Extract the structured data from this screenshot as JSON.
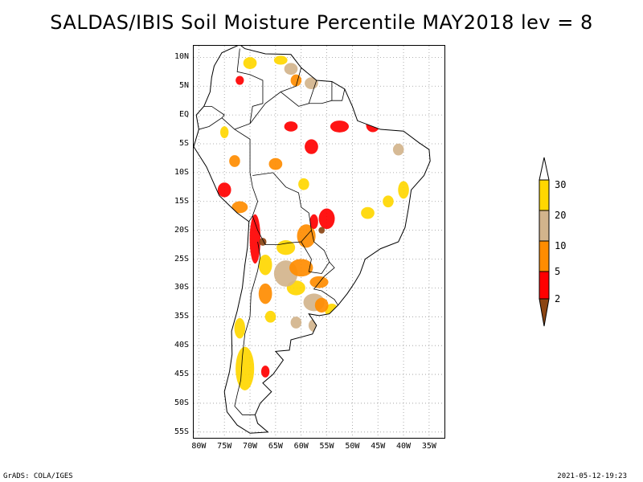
{
  "title": "SALDAS/IBIS Soil Moisture Percentile MAY2018 lev = 8",
  "axes": {
    "lat_ticks": [
      "10N",
      "5N",
      "EQ",
      "5S",
      "10S",
      "15S",
      "20S",
      "25S",
      "30S",
      "35S",
      "40S",
      "45S",
      "50S",
      "55S"
    ],
    "lat_values": [
      10,
      5,
      0,
      -5,
      -10,
      -15,
      -20,
      -25,
      -30,
      -35,
      -40,
      -45,
      -50,
      -55
    ],
    "lon_ticks": [
      "80W",
      "75W",
      "70W",
      "65W",
      "60W",
      "55W",
      "50W",
      "45W",
      "40W",
      "35W"
    ],
    "lon_values": [
      -80,
      -75,
      -70,
      -65,
      -60,
      -55,
      -50,
      -45,
      -40,
      -35
    ],
    "lat_range": [
      -56,
      12
    ],
    "lon_range": [
      -81,
      -32
    ],
    "grid": true
  },
  "colorbar": {
    "labels": [
      "30",
      "20",
      "10",
      "5",
      "2"
    ],
    "colors": {
      "above_30": "#ffffff",
      "20_30": "#ffd700",
      "10_20": "#d2b48c",
      "5_10": "#ff8c00",
      "2_5": "#ff0000",
      "below_2": "#8b4513"
    }
  },
  "footer": {
    "left": "GrADS: COLA/IGES",
    "right": "2021-05-12-19:23"
  },
  "map": {
    "outline": [
      [
        -77.0,
        8.5
      ],
      [
        -75.5,
        10.8
      ],
      [
        -72.0,
        12.2
      ],
      [
        -71.0,
        11.5
      ],
      [
        -67.0,
        10.6
      ],
      [
        -62.0,
        10.5
      ],
      [
        -60.0,
        8.2
      ],
      [
        -57.0,
        6.0
      ],
      [
        -54.0,
        5.8
      ],
      [
        -51.5,
        4.5
      ],
      [
        -50.0,
        1.5
      ],
      [
        -49.0,
        -1.0
      ],
      [
        -44.5,
        -2.5
      ],
      [
        -40.0,
        -2.8
      ],
      [
        -37.0,
        -4.8
      ],
      [
        -35.0,
        -6.0
      ],
      [
        -34.8,
        -8.0
      ],
      [
        -36.0,
        -10.5
      ],
      [
        -38.5,
        -13.0
      ],
      [
        -39.0,
        -16.0
      ],
      [
        -39.7,
        -19.5
      ],
      [
        -41.0,
        -22.0
      ],
      [
        -44.5,
        -23.2
      ],
      [
        -47.5,
        -25.0
      ],
      [
        -48.5,
        -27.5
      ],
      [
        -49.5,
        -29.0
      ],
      [
        -51.0,
        -31.0
      ],
      [
        -52.8,
        -33.0
      ],
      [
        -54.5,
        -34.5
      ],
      [
        -56.5,
        -34.8
      ],
      [
        -58.5,
        -34.5
      ],
      [
        -57.0,
        -36.5
      ],
      [
        -57.8,
        -38.0
      ],
      [
        -62.0,
        -39.0
      ],
      [
        -62.3,
        -40.8
      ],
      [
        -65.0,
        -41.0
      ],
      [
        -63.5,
        -42.5
      ],
      [
        -65.5,
        -45.0
      ],
      [
        -67.5,
        -46.5
      ],
      [
        -65.8,
        -48.0
      ],
      [
        -68.0,
        -50.0
      ],
      [
        -69.0,
        -52.0
      ],
      [
        -68.5,
        -53.5
      ],
      [
        -66.5,
        -55.0
      ],
      [
        -70.0,
        -55.2
      ],
      [
        -72.5,
        -53.8
      ],
      [
        -74.5,
        -51.5
      ],
      [
        -75.0,
        -48.0
      ],
      [
        -74.0,
        -44.5
      ],
      [
        -73.5,
        -41.5
      ],
      [
        -73.6,
        -37.5
      ],
      [
        -72.5,
        -34.0
      ],
      [
        -71.5,
        -30.0
      ],
      [
        -71.0,
        -26.0
      ],
      [
        -70.5,
        -23.0
      ],
      [
        -70.2,
        -18.5
      ],
      [
        -72.5,
        -17.0
      ],
      [
        -76.0,
        -14.0
      ],
      [
        -78.5,
        -9.0
      ],
      [
        -81.0,
        -5.5
      ],
      [
        -80.0,
        -2.5
      ],
      [
        -80.5,
        0.0
      ],
      [
        -79.0,
        1.5
      ],
      [
        -77.8,
        4.0
      ],
      [
        -77.5,
        6.5
      ],
      [
        -77.0,
        8.5
      ]
    ],
    "borders": [
      [
        [
          -80.0,
          -2.5
        ],
        [
          -78.0,
          -2.0
        ],
        [
          -75.5,
          -0.5
        ],
        [
          -75.0,
          0.0
        ],
        [
          -77.5,
          1.5
        ],
        [
          -79.0,
          1.5
        ]
      ],
      [
        [
          -75.5,
          -0.5
        ],
        [
          -73.0,
          -2.5
        ],
        [
          -70.0,
          -4.2
        ],
        [
          -70.0,
          -10.0
        ],
        [
          -69.5,
          -12.5
        ],
        [
          -68.5,
          -15.0
        ],
        [
          -69.5,
          -17.5
        ],
        [
          -70.2,
          -18.5
        ]
      ],
      [
        [
          -73.0,
          -2.5
        ],
        [
          -70.0,
          -1.5
        ],
        [
          -69.5,
          1.5
        ],
        [
          -67.5,
          2.0
        ],
        [
          -67.5,
          6.0
        ],
        [
          -70.0,
          7.0
        ],
        [
          -72.5,
          7.5
        ],
        [
          -72.0,
          11.5
        ]
      ],
      [
        [
          -70.0,
          -1.5
        ],
        [
          -67.0,
          2.0
        ],
        [
          -64.0,
          4.0
        ],
        [
          -61.0,
          5.0
        ],
        [
          -60.0,
          8.2
        ]
      ],
      [
        [
          -64.0,
          4.0
        ],
        [
          -60.5,
          1.5
        ],
        [
          -58.5,
          2.0
        ],
        [
          -57.0,
          6.0
        ]
      ],
      [
        [
          -58.5,
          2.0
        ],
        [
          -56.0,
          2.0
        ],
        [
          -54.0,
          2.5
        ],
        [
          -54.0,
          5.8
        ]
      ],
      [
        [
          -54.0,
          2.5
        ],
        [
          -52.0,
          2.5
        ],
        [
          -51.5,
          4.5
        ]
      ],
      [
        [
          -69.5,
          -10.5
        ],
        [
          -65.5,
          -10.0
        ],
        [
          -63.0,
          -12.5
        ],
        [
          -60.5,
          -13.5
        ],
        [
          -60.0,
          -16.0
        ],
        [
          -58.5,
          -17.0
        ],
        [
          -58.0,
          -20.0
        ],
        [
          -60.0,
          -22.0
        ],
        [
          -62.5,
          -22.2
        ],
        [
          -64.5,
          -22.5
        ],
        [
          -67.0,
          -22.5
        ],
        [
          -68.5,
          -20.0
        ],
        [
          -69.5,
          -17.5
        ]
      ],
      [
        [
          -58.0,
          -20.0
        ],
        [
          -57.5,
          -22.0
        ],
        [
          -55.5,
          -23.5
        ],
        [
          -54.5,
          -25.5
        ],
        [
          -56.0,
          -27.5
        ],
        [
          -58.5,
          -27.2
        ],
        [
          -58.0,
          -25.0
        ],
        [
          -60.0,
          -22.0
        ]
      ],
      [
        [
          -54.5,
          -25.5
        ],
        [
          -53.5,
          -26.5
        ],
        [
          -55.5,
          -28.0
        ],
        [
          -57.5,
          -30.2
        ],
        [
          -56.0,
          -30.5
        ],
        [
          -53.5,
          -32.0
        ],
        [
          -52.8,
          -33.0
        ]
      ],
      [
        [
          -68.5,
          -22.0
        ],
        [
          -68.0,
          -24.5
        ],
        [
          -68.5,
          -27.0
        ],
        [
          -69.8,
          -31.0
        ],
        [
          -70.0,
          -35.0
        ],
        [
          -71.0,
          -38.0
        ],
        [
          -71.5,
          -42.0
        ],
        [
          -71.8,
          -46.0
        ],
        [
          -72.5,
          -48.5
        ],
        [
          -73.0,
          -50.5
        ],
        [
          -71.5,
          -52.0
        ],
        [
          -69.0,
          -52.0
        ]
      ]
    ],
    "regions_red": [
      [
        -52.5,
        -2.0,
        3.0,
        1.5
      ],
      [
        -46.0,
        -1.8,
        2.0,
        1.8
      ],
      [
        -58.0,
        -5.5,
        2.0,
        2.0
      ],
      [
        -62.0,
        -2.0,
        2.0,
        1.2
      ],
      [
        -55.0,
        -18.0,
        2.5,
        3.0
      ],
      [
        -69.0,
        -21.5,
        1.5,
        8.0
      ],
      [
        -75.0,
        -13.0,
        2.0,
        2.0
      ],
      [
        -67.0,
        -44.5,
        1.0,
        1.5
      ],
      [
        -57.5,
        -18.5,
        1.0,
        2.0
      ],
      [
        -72.0,
        6.0,
        1.0,
        1.0
      ]
    ],
    "regions_orange": [
      [
        -59.0,
        -21.0,
        3.0,
        3.5
      ],
      [
        -72.0,
        -16.0,
        2.5,
        1.5
      ],
      [
        -67.0,
        -31.0,
        2.0,
        3.0
      ],
      [
        -60.0,
        -26.5,
        4.0,
        2.5
      ],
      [
        -65.0,
        -8.5,
        2.0,
        1.5
      ],
      [
        -56.5,
        -29.0,
        3.0,
        1.5
      ],
      [
        -56.0,
        -33.0,
        2.0,
        2.0
      ],
      [
        -73.0,
        -8.0,
        1.5,
        1.5
      ],
      [
        -61.0,
        6.0,
        1.5,
        1.5
      ]
    ],
    "regions_tan": [
      [
        -63.0,
        -27.5,
        4.0,
        4.0
      ],
      [
        -57.5,
        -32.5,
        3.5,
        2.5
      ],
      [
        -57.0,
        -36.5,
        2.5,
        2.0
      ],
      [
        -61.0,
        -36.0,
        1.5,
        1.5
      ],
      [
        -62.0,
        8.0,
        2.0,
        1.5
      ],
      [
        -58.0,
        5.5,
        2.0,
        1.5
      ],
      [
        -41.0,
        -6.0,
        1.5,
        1.5
      ]
    ],
    "regions_yellow": [
      [
        -71.0,
        -44.0,
        3.0,
        7.0
      ],
      [
        -72.0,
        -37.0,
        1.5,
        3.0
      ],
      [
        -63.0,
        -23.0,
        3.0,
        2.0
      ],
      [
        -67.0,
        -26.0,
        2.0,
        3.0
      ],
      [
        -61.0,
        -30.0,
        3.0,
        2.0
      ],
      [
        -54.0,
        -34.0,
        2.0,
        2.0
      ],
      [
        -70.0,
        9.0,
        2.0,
        1.5
      ],
      [
        -64.0,
        9.5,
        2.0,
        1.0
      ],
      [
        -40.0,
        -13.0,
        1.5,
        2.5
      ],
      [
        -47.0,
        -17.0,
        2.0,
        1.5
      ],
      [
        -43.0,
        -15.0,
        1.5,
        1.5
      ],
      [
        -75.0,
        -3.0,
        1.0,
        1.5
      ],
      [
        -66.0,
        -35.0,
        1.5,
        1.5
      ],
      [
        -59.5,
        -12.0,
        1.5,
        1.5
      ]
    ],
    "regions_brown": [
      [
        -67.5,
        -22.0,
        0.8,
        0.8
      ],
      [
        -56.0,
        -20.0,
        0.6,
        0.6
      ]
    ]
  }
}
